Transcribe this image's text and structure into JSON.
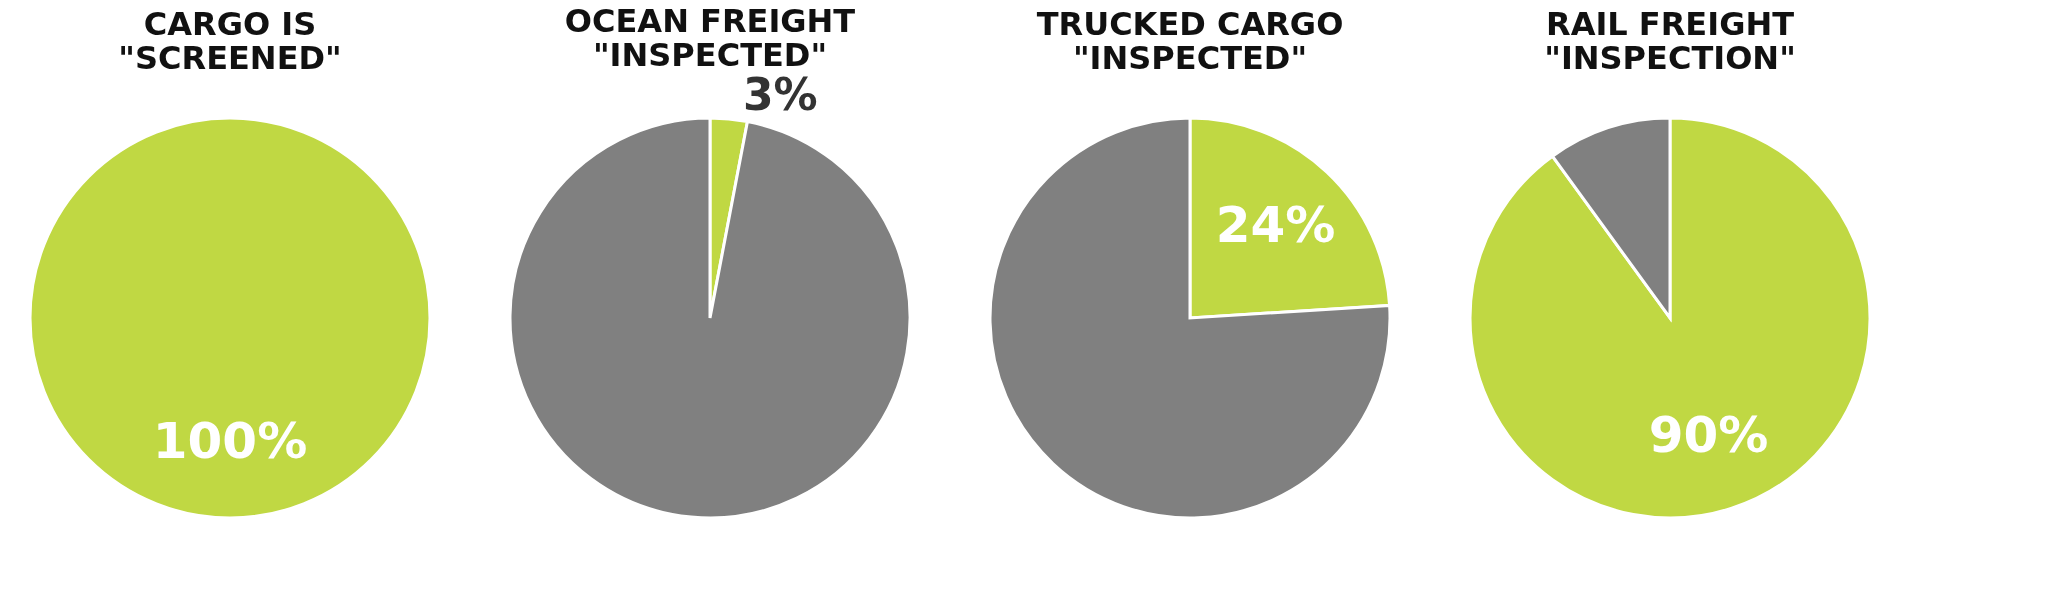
{
  "chart_data": [
    {
      "type": "pie",
      "title": "CARGO IS \"SCREENED\"",
      "categories": [
        null
      ],
      "values": [
        100
      ],
      "colors": [
        "#c0d843"
      ],
      "value_labels": [
        "100%"
      ],
      "legend": false
    },
    {
      "type": "pie",
      "title": "OCEAN FREIGHT \"INSPECTED\"",
      "categories": [
        null,
        null
      ],
      "values": [
        3,
        97
      ],
      "colors": [
        "#c0d843",
        "#808080"
      ],
      "value_labels": [
        "3%",
        null
      ],
      "legend": false
    },
    {
      "type": "pie",
      "title": "TRUCKED CARGO \"INSPECTED\"",
      "categories": [
        null,
        null
      ],
      "values": [
        24,
        76
      ],
      "colors": [
        "#c0d843",
        "#808080"
      ],
      "value_labels": [
        "24%",
        null
      ],
      "legend": false
    },
    {
      "type": "pie",
      "title": "RAIL FREIGHT \"INSPECTION\"",
      "categories": [
        null,
        null
      ],
      "values": [
        90,
        10
      ],
      "colors": [
        "#c0d843",
        "#808080"
      ],
      "value_labels": [
        "90%",
        null
      ],
      "legend": false
    }
  ]
}
